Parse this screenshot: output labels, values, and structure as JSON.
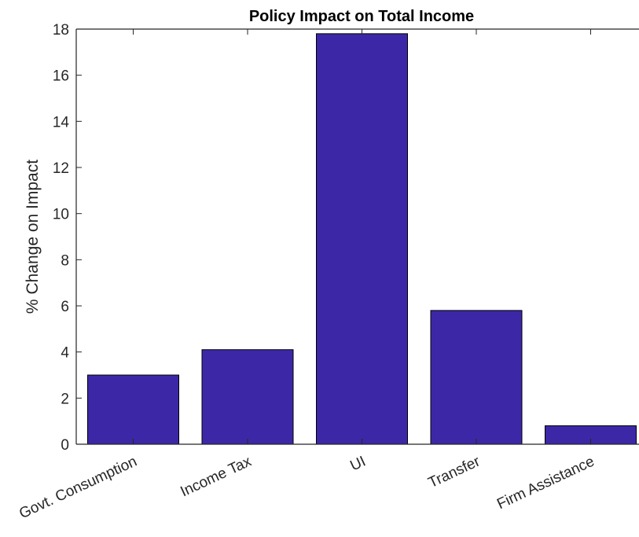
{
  "chart_data": {
    "type": "bar",
    "title": "Policy Impact on Total Income",
    "xlabel": "",
    "ylabel": "% Change on Impact",
    "categories": [
      "Govt. Consumption",
      "Income Tax",
      "UI",
      "Transfer",
      "Firm Assistance"
    ],
    "values": [
      3.0,
      4.1,
      17.8,
      5.8,
      0.8
    ],
    "ylim": [
      0,
      18
    ],
    "yticks": [
      0,
      2,
      4,
      6,
      8,
      10,
      12,
      14,
      16,
      18
    ],
    "ytick_labels": [
      "0",
      "2",
      "4",
      "6",
      "8",
      "10",
      "12",
      "14",
      "16",
      "18"
    ],
    "grid": false,
    "legend": "none",
    "colors": {
      "bar_fill": "#3C28A6",
      "bar_edge": "#000000",
      "axis": "#262626"
    }
  }
}
